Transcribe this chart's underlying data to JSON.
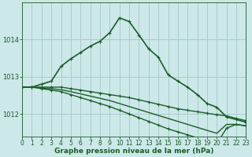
{
  "title": "Graphe pression niveau de la mer (hPa)",
  "background_color": "#cce8e8",
  "grid_color": "#aacccc",
  "line_color": "#1a5c2a",
  "x_ticks": [
    0,
    1,
    2,
    3,
    4,
    5,
    6,
    7,
    8,
    9,
    10,
    11,
    12,
    13,
    14,
    15,
    16,
    17,
    18,
    19,
    20,
    21,
    22,
    23
  ],
  "y_ticks": [
    1012,
    1013,
    1014
  ],
  "ylim": [
    1011.4,
    1015.0
  ],
  "xlim": [
    0,
    23
  ],
  "series": [
    {
      "x": [
        0,
        1,
        2,
        3,
        4,
        5,
        6,
        7,
        8,
        9,
        10,
        11,
        12,
        13,
        14,
        15,
        16,
        17,
        18,
        19,
        20,
        21,
        22,
        23
      ],
      "y": [
        1012.72,
        1012.72,
        1012.8,
        1012.88,
        1013.28,
        1013.48,
        1013.65,
        1013.82,
        1013.95,
        1014.18,
        1014.58,
        1014.48,
        1014.12,
        1013.75,
        1013.52,
        1013.05,
        1012.88,
        1012.72,
        1012.52,
        1012.28,
        1012.18,
        1011.92,
        1011.85,
        1011.78
      ],
      "lw": 1.2,
      "marker": true
    },
    {
      "x": [
        0,
        1,
        2,
        3,
        4,
        5,
        6,
        7,
        8,
        9,
        10,
        11,
        12,
        13,
        14,
        15,
        16,
        17,
        18,
        19,
        20,
        21,
        22,
        23
      ],
      "y": [
        1012.72,
        1012.72,
        1012.72,
        1012.72,
        1012.72,
        1012.68,
        1012.64,
        1012.6,
        1012.56,
        1012.52,
        1012.48,
        1012.44,
        1012.38,
        1012.32,
        1012.26,
        1012.2,
        1012.14,
        1012.1,
        1012.06,
        1012.02,
        1011.98,
        1011.95,
        1011.88,
        1011.82
      ],
      "lw": 1.0,
      "marker": true
    },
    {
      "x": [
        0,
        1,
        2,
        3,
        4,
        5,
        6,
        7,
        8,
        9,
        10,
        11,
        12,
        13,
        14,
        15,
        16,
        17,
        18,
        19,
        20,
        21,
        22,
        23
      ],
      "y": [
        1012.72,
        1012.72,
        1012.7,
        1012.68,
        1012.65,
        1012.6,
        1012.54,
        1012.48,
        1012.42,
        1012.36,
        1012.28,
        1012.2,
        1012.12,
        1012.04,
        1011.96,
        1011.88,
        1011.8,
        1011.72,
        1011.64,
        1011.56,
        1011.48,
        1011.72,
        1011.72,
        1011.68
      ],
      "lw": 1.0,
      "marker": false
    },
    {
      "x": [
        0,
        1,
        2,
        3,
        4,
        5,
        6,
        7,
        8,
        9,
        10,
        11,
        12,
        13,
        14,
        15,
        16,
        17,
        18,
        19,
        20,
        21,
        22,
        23
      ],
      "y": [
        1012.72,
        1012.72,
        1012.68,
        1012.64,
        1012.6,
        1012.52,
        1012.44,
        1012.36,
        1012.28,
        1012.2,
        1012.1,
        1012.0,
        1011.9,
        1011.8,
        1011.7,
        1011.6,
        1011.52,
        1011.44,
        1011.36,
        1011.28,
        1011.2,
        1011.62,
        1011.72,
        1011.68
      ],
      "lw": 1.0,
      "marker": true
    }
  ],
  "marker_style": "+",
  "marker_size": 3,
  "marker_lw": 0.8,
  "ylabel_fontsize": 6,
  "xlabel_fontsize": 6.5,
  "tick_fontsize": 5.5
}
